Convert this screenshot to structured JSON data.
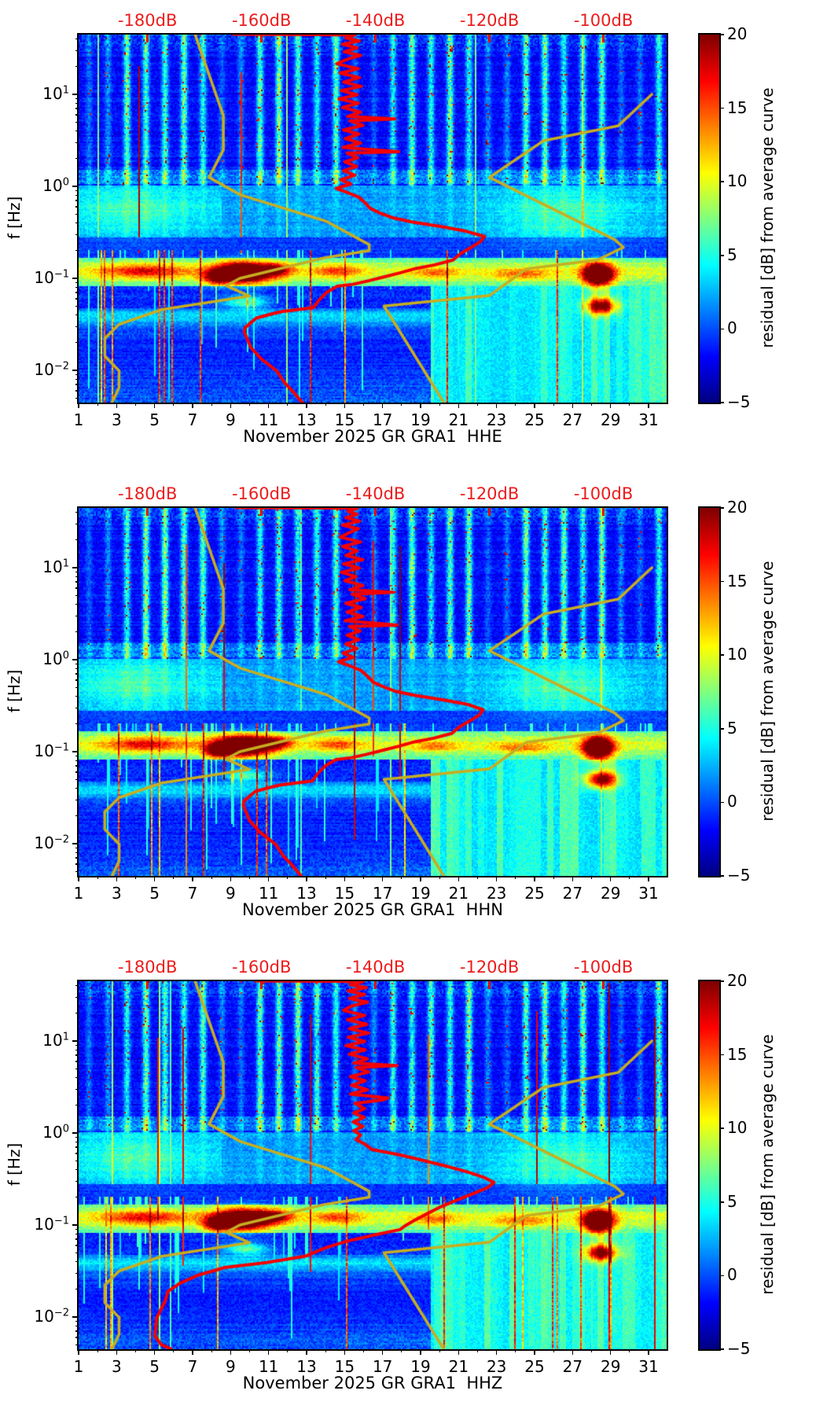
{
  "figure": {
    "background": "#ffffff"
  },
  "colors": {
    "mean_curve": "#f50000",
    "noise_model_curve": "#c6ae22",
    "top_axis_labels": "#ec1c1c",
    "axis": "#000000"
  },
  "chart_data": {
    "type": "heatmap",
    "description": "Three probabilistic power spectral density residual spectrograms (day of month vs frequency) for seismic station GR GRA1, channels HHE, HHN, HHZ, November 2025. Color is residual [dB] from average curve. Overlaid red curve is the station mean PSD (dB, top axis) and dark-yellow curves are the Peterson NLNM/NHNM noise models.",
    "x_axis": {
      "tick_days": [
        1,
        3,
        5,
        7,
        9,
        11,
        13,
        15,
        17,
        19,
        21,
        23,
        25,
        27,
        29,
        31
      ],
      "minor_days": [
        2,
        4,
        6,
        8,
        10,
        12,
        14,
        16,
        18,
        20,
        22,
        24,
        26,
        28,
        30
      ],
      "range_days": [
        1,
        31.95
      ]
    },
    "y_axis": {
      "label": "f [Hz]",
      "scale": "log",
      "range_hz": [
        0.00446,
        44.6
      ],
      "decade_exponents": [
        "1",
        "0",
        "−1",
        "−2"
      ]
    },
    "top_axis": {
      "tick_labels": [
        "-180dB",
        "-160dB",
        "-140dB",
        "-120dB",
        "-100dB"
      ],
      "tick_values_db": [
        -180,
        -160,
        -140,
        -120,
        -100
      ],
      "range_db": [
        -192.1,
        -88.9
      ]
    },
    "colorbar": {
      "label": "residual [dB] from average curve",
      "range": [
        -5,
        20
      ],
      "ticks": [
        20,
        15,
        10,
        5,
        0,
        -5
      ],
      "tick_labels": [
        "20",
        "15",
        "10",
        "5",
        "0",
        "−5"
      ],
      "colormap": "jet"
    },
    "noise_models": {
      "nlnm_period_s_db": [
        [
          0.022,
          -171.7
        ],
        [
          0.1,
          -168.0
        ],
        [
          0.17,
          -166.7
        ],
        [
          0.4,
          -166.7
        ],
        [
          0.8,
          -169.2
        ],
        [
          1.24,
          -163.7
        ],
        [
          2.4,
          -148.6
        ],
        [
          4.3,
          -141.1
        ],
        [
          5.0,
          -141.1
        ],
        [
          6.0,
          -149.0
        ],
        [
          10.0,
          -163.8
        ],
        [
          12.0,
          -166.2
        ],
        [
          15.6,
          -162.1
        ],
        [
          21.9,
          -177.5
        ],
        [
          31.6,
          -185.0
        ],
        [
          45.0,
          -187.5
        ],
        [
          70.0,
          -187.5
        ],
        [
          101.0,
          -185.0
        ],
        [
          154.0,
          -185.0
        ],
        [
          328.0,
          -187.5
        ]
      ],
      "nhnm_period_s_db": [
        [
          0.1,
          -91.5
        ],
        [
          0.22,
          -97.4
        ],
        [
          0.32,
          -110.5
        ],
        [
          0.8,
          -120.0
        ],
        [
          3.8,
          -98.0
        ],
        [
          4.6,
          -96.5
        ],
        [
          6.3,
          -101.0
        ],
        [
          7.9,
          -113.5
        ],
        [
          15.4,
          -120.0
        ],
        [
          20.0,
          -138.5
        ],
        [
          354.8,
          -126.0
        ]
      ]
    },
    "panels": [
      {
        "channel": "HHE",
        "xlabel": "November 2025 GR GRA1  HHE",
        "seed": 11,
        "mean_psd_hz_db": [
          [
            45,
            -165
          ],
          [
            44.6,
            -150
          ],
          [
            44.2,
            -143.6
          ],
          [
            41,
            -145.2
          ],
          [
            38,
            -142.8
          ],
          [
            35,
            -145.8
          ],
          [
            32,
            -143.2
          ],
          [
            29,
            -145.5
          ],
          [
            26.5,
            -142.6
          ],
          [
            24,
            -145.0
          ],
          [
            21.5,
            -146.8
          ],
          [
            19,
            -143.0
          ],
          [
            17,
            -146.2
          ],
          [
            15.2,
            -142.8
          ],
          [
            13.6,
            -145.6
          ],
          [
            12.2,
            -142.5
          ],
          [
            11,
            -146.0
          ],
          [
            9.9,
            -143.2
          ],
          [
            8.9,
            -146.4
          ],
          [
            8.0,
            -143.0
          ],
          [
            7.2,
            -145.8
          ],
          [
            6.4,
            -142.6
          ],
          [
            5.75,
            -144.9
          ],
          [
            5.4,
            -136.6
          ],
          [
            5.15,
            -144.5
          ],
          [
            4.6,
            -142.2
          ],
          [
            4.1,
            -145.6
          ],
          [
            3.7,
            -142.9
          ],
          [
            3.3,
            -145.3
          ],
          [
            2.95,
            -142.6
          ],
          [
            2.65,
            -145.7
          ],
          [
            2.38,
            -135.9
          ],
          [
            2.3,
            -145.0
          ],
          [
            2.05,
            -143.1
          ],
          [
            1.84,
            -145.4
          ],
          [
            1.65,
            -143.3
          ],
          [
            1.48,
            -145.6
          ],
          [
            1.32,
            -143.6
          ],
          [
            1.18,
            -146.1
          ],
          [
            1.06,
            -144.3
          ],
          [
            0.95,
            -146.9
          ],
          [
            0.85,
            -144.8
          ],
          [
            0.76,
            -142.9
          ],
          [
            0.66,
            -141.8
          ],
          [
            0.575,
            -140.9
          ],
          [
            0.5,
            -138.8
          ],
          [
            0.455,
            -137.0
          ],
          [
            0.41,
            -133.6
          ],
          [
            0.365,
            -128.4
          ],
          [
            0.325,
            -124.1
          ],
          [
            0.285,
            -120.9
          ],
          [
            0.25,
            -121.6
          ],
          [
            0.215,
            -123.3
          ],
          [
            0.185,
            -125.1
          ],
          [
            0.158,
            -126.4
          ],
          [
            0.14,
            -129.6
          ],
          [
            0.128,
            -132.9
          ],
          [
            0.115,
            -135.6
          ],
          [
            0.104,
            -138.4
          ],
          [
            0.094,
            -141.2
          ],
          [
            0.086,
            -144.0
          ],
          [
            0.082,
            -146.7
          ],
          [
            0.07,
            -148.6
          ],
          [
            0.058,
            -149.9
          ],
          [
            0.048,
            -150.9
          ],
          [
            0.0435,
            -156.4
          ],
          [
            0.041,
            -158.2
          ],
          [
            0.037,
            -160.9
          ],
          [
            0.029,
            -162.9
          ],
          [
            0.026,
            -163.0
          ],
          [
            0.0205,
            -162.3
          ],
          [
            0.0178,
            -161.9
          ],
          [
            0.0134,
            -160.1
          ],
          [
            0.0098,
            -157.3
          ],
          [
            0.0074,
            -156.0
          ],
          [
            0.0058,
            -154.4
          ],
          [
            0.0045,
            -152.9
          ]
        ]
      },
      {
        "channel": "HHN",
        "xlabel": "November 2025 GR GRA1  HHN",
        "seed": 23,
        "mean_psd_hz_db": [
          [
            45,
            -164.5
          ],
          [
            44.6,
            -149
          ],
          [
            44.2,
            -143.2
          ],
          [
            41,
            -144.8
          ],
          [
            38,
            -143.2
          ],
          [
            35,
            -145.2
          ],
          [
            32,
            -142.8
          ],
          [
            29,
            -145.8
          ],
          [
            26.5,
            -143.0
          ],
          [
            24,
            -144.6
          ],
          [
            21.5,
            -146.2
          ],
          [
            19,
            -142.6
          ],
          [
            17,
            -145.8
          ],
          [
            15.2,
            -143.2
          ],
          [
            13.6,
            -145.2
          ],
          [
            12.2,
            -142.2
          ],
          [
            11,
            -145.6
          ],
          [
            9.9,
            -142.8
          ],
          [
            8.9,
            -146.0
          ],
          [
            8.0,
            -143.4
          ],
          [
            7.2,
            -145.4
          ],
          [
            6.4,
            -142.2
          ],
          [
            5.75,
            -144.5
          ],
          [
            5.4,
            -136.9
          ],
          [
            5.15,
            -144.1
          ],
          [
            4.6,
            -141.8
          ],
          [
            4.1,
            -145.2
          ],
          [
            3.7,
            -142.5
          ],
          [
            3.3,
            -145.0
          ],
          [
            2.95,
            -142.2
          ],
          [
            2.65,
            -145.3
          ],
          [
            2.38,
            -136.2
          ],
          [
            2.3,
            -144.6
          ],
          [
            2.05,
            -142.7
          ],
          [
            1.84,
            -145.0
          ],
          [
            1.65,
            -142.9
          ],
          [
            1.48,
            -145.2
          ],
          [
            1.32,
            -143.2
          ],
          [
            1.18,
            -145.7
          ],
          [
            1.06,
            -143.9
          ],
          [
            0.95,
            -146.5
          ],
          [
            0.85,
            -144.4
          ],
          [
            0.76,
            -142.5
          ],
          [
            0.66,
            -141.4
          ],
          [
            0.575,
            -140.5
          ],
          [
            0.5,
            -138.4
          ],
          [
            0.455,
            -136.6
          ],
          [
            0.41,
            -133.2
          ],
          [
            0.365,
            -128.0
          ],
          [
            0.325,
            -123.7
          ],
          [
            0.285,
            -121.1
          ],
          [
            0.25,
            -121.8
          ],
          [
            0.215,
            -123.5
          ],
          [
            0.185,
            -125.3
          ],
          [
            0.158,
            -126.6
          ],
          [
            0.14,
            -129.8
          ],
          [
            0.128,
            -133.1
          ],
          [
            0.115,
            -135.8
          ],
          [
            0.104,
            -138.6
          ],
          [
            0.094,
            -141.4
          ],
          [
            0.086,
            -144.2
          ],
          [
            0.082,
            -146.9
          ],
          [
            0.07,
            -148.8
          ],
          [
            0.058,
            -150.1
          ],
          [
            0.048,
            -151.1
          ],
          [
            0.0435,
            -156.6
          ],
          [
            0.041,
            -158.4
          ],
          [
            0.037,
            -161.1
          ],
          [
            0.029,
            -163.1
          ],
          [
            0.026,
            -163.2
          ],
          [
            0.0205,
            -162.5
          ],
          [
            0.0178,
            -162.1
          ],
          [
            0.0134,
            -160.3
          ],
          [
            0.0098,
            -157.5
          ],
          [
            0.0074,
            -156.2
          ],
          [
            0.0058,
            -154.6
          ],
          [
            0.0045,
            -153.1
          ]
        ]
      },
      {
        "channel": "HHZ",
        "xlabel": "November 2025 GR GRA1  HHZ",
        "seed": 37,
        "mean_psd_hz_db": [
          [
            45,
            -161
          ],
          [
            44.6,
            -147
          ],
          [
            44.2,
            -142.2
          ],
          [
            41,
            -144.4
          ],
          [
            38,
            -141.6
          ],
          [
            35,
            -144.8
          ],
          [
            32,
            -141.9
          ],
          [
            29,
            -144.6
          ],
          [
            26.5,
            -141.4
          ],
          [
            24,
            -144.2
          ],
          [
            21.5,
            -145.6
          ],
          [
            19,
            -141.9
          ],
          [
            17,
            -144.9
          ],
          [
            15.2,
            -141.5
          ],
          [
            13.6,
            -144.6
          ],
          [
            12.2,
            -141.2
          ],
          [
            11,
            -144.8
          ],
          [
            9.9,
            -141.9
          ],
          [
            8.9,
            -145.2
          ],
          [
            8.0,
            -141.8
          ],
          [
            7.2,
            -144.6
          ],
          [
            6.4,
            -141.4
          ],
          [
            5.75,
            -143.8
          ],
          [
            5.4,
            -136.2
          ],
          [
            5.15,
            -143.4
          ],
          [
            4.6,
            -141.2
          ],
          [
            4.1,
            -144.4
          ],
          [
            3.7,
            -141.8
          ],
          [
            3.3,
            -144.2
          ],
          [
            2.95,
            -141.4
          ],
          [
            2.65,
            -144.4
          ],
          [
            2.4,
            -137.8
          ],
          [
            2.28,
            -138.8
          ],
          [
            2.1,
            -143.6
          ],
          [
            1.84,
            -141.9
          ],
          [
            1.65,
            -143.8
          ],
          [
            1.48,
            -142.0
          ],
          [
            1.32,
            -143.9
          ],
          [
            1.18,
            -142.2
          ],
          [
            1.06,
            -143.8
          ],
          [
            0.95,
            -142.6
          ],
          [
            0.85,
            -143.4
          ],
          [
            0.76,
            -141.9
          ],
          [
            0.66,
            -140.6
          ],
          [
            0.576,
            -135.6
          ],
          [
            0.5,
            -131.4
          ],
          [
            0.44,
            -127.8
          ],
          [
            0.38,
            -124.0
          ],
          [
            0.33,
            -121.0
          ],
          [
            0.29,
            -119.2
          ],
          [
            0.255,
            -120.3
          ],
          [
            0.22,
            -122.8
          ],
          [
            0.185,
            -125.8
          ],
          [
            0.155,
            -128.8
          ],
          [
            0.13,
            -131.2
          ],
          [
            0.112,
            -133.2
          ],
          [
            0.098,
            -134.8
          ],
          [
            0.089,
            -135.7
          ],
          [
            0.079,
            -139.8
          ],
          [
            0.066,
            -145.3
          ],
          [
            0.056,
            -148.9
          ],
          [
            0.046,
            -152.2
          ],
          [
            0.039,
            -159.1
          ],
          [
            0.0345,
            -166.4
          ],
          [
            0.0285,
            -171.1
          ],
          [
            0.0233,
            -174.3
          ],
          [
            0.019,
            -176.4
          ],
          [
            0.0145,
            -177.0
          ],
          [
            0.0098,
            -178.4
          ],
          [
            0.0062,
            -178.7
          ],
          [
            0.005,
            -177.6
          ],
          [
            0.0045,
            -175.9
          ]
        ]
      }
    ],
    "texture": {
      "weekend_days": [
        1,
        2,
        8,
        9,
        15,
        16,
        22,
        23,
        29,
        30
      ],
      "storm_blobs": [
        {
          "day": 9.6,
          "f": 0.115,
          "sd": 1.5,
          "sf": 0.11,
          "amp": 23
        },
        {
          "day": 8.3,
          "f": 0.1,
          "sd": 0.7,
          "sf": 0.07,
          "amp": 10
        },
        {
          "day": 4.5,
          "f": 0.12,
          "sd": 2.2,
          "sf": 0.08,
          "amp": 8
        },
        {
          "day": 11.4,
          "f": 0.125,
          "sd": 0.9,
          "sf": 0.07,
          "amp": 9
        },
        {
          "day": 14.6,
          "f": 0.12,
          "sd": 1.3,
          "sf": 0.07,
          "amp": 6
        },
        {
          "day": 19.8,
          "f": 0.115,
          "sd": 1.2,
          "sf": 0.06,
          "amp": 5
        },
        {
          "day": 24.3,
          "f": 0.11,
          "sd": 1.6,
          "sf": 0.06,
          "amp": 5
        },
        {
          "day": 28.35,
          "f": 0.11,
          "sd": 0.75,
          "sf": 0.12,
          "amp": 25
        },
        {
          "day": 28.5,
          "f": 0.05,
          "sd": 0.8,
          "sf": 0.09,
          "amp": 17
        },
        {
          "day": 9.8,
          "f": 0.055,
          "sd": 1.2,
          "sf": 0.07,
          "amp": 8
        },
        {
          "day": 26.5,
          "f": 0.5,
          "sd": 3.5,
          "sf": 0.33,
          "amp": 4
        },
        {
          "day": 4.0,
          "f": 0.55,
          "sd": 2.5,
          "sf": 0.3,
          "amp": 2.5
        }
      ]
    }
  }
}
